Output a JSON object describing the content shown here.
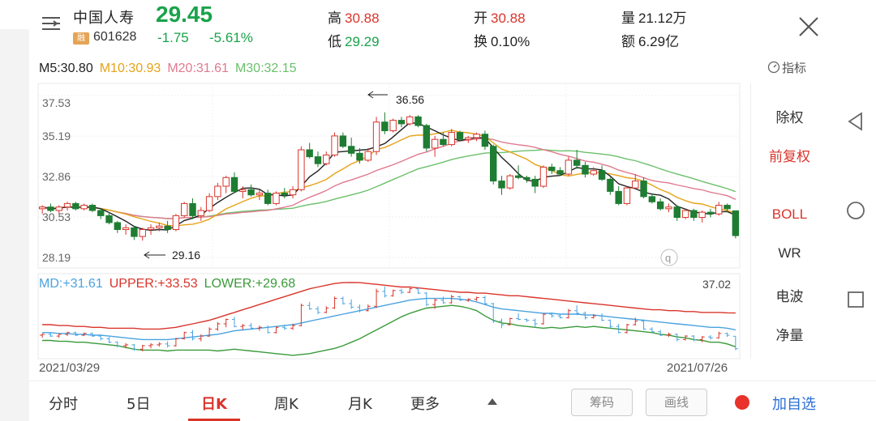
{
  "header": {
    "name": "中国人寿",
    "price": "29.45",
    "badge": "融",
    "code": "601628",
    "change": "-1.75",
    "change_pct": "-5.61%",
    "stats": {
      "high_label": "高",
      "high": "30.88",
      "low_label": "低",
      "low": "29.29",
      "open_label": "开",
      "open": "30.88",
      "turnover_label": "换",
      "turnover": "0.10%",
      "volume_label": "量",
      "volume": "21.12万",
      "amount_label": "额",
      "amount": "6.29亿"
    }
  },
  "ma": {
    "m5": "M5:30.80",
    "m10": "M10:30.93",
    "m20": "M20:31.61",
    "m30": "M30:32.15"
  },
  "indicator_label": "指标",
  "kline": {
    "y_ticks": [
      "37.53",
      "35.19",
      "32.86",
      "30.53",
      "28.19"
    ],
    "max_label": "36.56",
    "min_label": "29.16",
    "logo": "q"
  },
  "boll": {
    "md": "MD:+31.61",
    "upper": "UPPER:+33.53",
    "lower": "LOWER:+29.68",
    "max_label": "37.02"
  },
  "dates": {
    "start": "2021/03/29",
    "end": "2021/07/26"
  },
  "side_panel": [
    "除权",
    "前复权",
    "BOLL",
    "WR",
    "电波",
    "净量"
  ],
  "tabs": [
    "分时",
    "5日",
    "日K",
    "周K",
    "月K",
    "更多"
  ],
  "buttons": {
    "chip": "筹码",
    "draw": "画线",
    "add_watch": "加自选"
  },
  "colors": {
    "up": "#d9342b",
    "down": "#1e7d32",
    "m5": "#222222",
    "m10": "#e6a317",
    "m20": "#e07a8f",
    "m30": "#6cc06c",
    "md": "#4aa3e0",
    "upper": "#d9342b",
    "lower": "#3a9a3a"
  },
  "chart_data": {
    "type": "candlestick",
    "y_range": [
      28.19,
      37.53
    ],
    "candles": [
      [
        31.0,
        31.2,
        30.7,
        31.1
      ],
      [
        31.1,
        31.3,
        30.8,
        30.9
      ],
      [
        30.9,
        31.2,
        30.7,
        31.1
      ],
      [
        31.1,
        31.4,
        30.9,
        31.3
      ],
      [
        31.3,
        31.4,
        30.9,
        31.0
      ],
      [
        31.0,
        31.3,
        30.9,
        31.2
      ],
      [
        31.2,
        31.3,
        30.8,
        30.9
      ],
      [
        30.9,
        31.0,
        30.4,
        30.6
      ],
      [
        30.6,
        30.8,
        30.1,
        30.2
      ],
      [
        30.2,
        30.3,
        29.6,
        29.8
      ],
      [
        29.8,
        30.1,
        29.5,
        29.9
      ],
      [
        29.9,
        30.0,
        29.2,
        29.4
      ],
      [
        29.4,
        29.9,
        29.16,
        29.8
      ],
      [
        29.8,
        30.1,
        29.5,
        29.9
      ],
      [
        29.9,
        30.2,
        29.7,
        30.0
      ],
      [
        30.0,
        30.3,
        29.6,
        29.8
      ],
      [
        29.8,
        30.7,
        29.7,
        30.6
      ],
      [
        30.6,
        31.4,
        30.5,
        31.3
      ],
      [
        31.3,
        31.6,
        30.4,
        30.6
      ],
      [
        30.6,
        31.1,
        30.3,
        30.9
      ],
      [
        30.9,
        31.9,
        30.8,
        31.7
      ],
      [
        31.7,
        32.5,
        31.5,
        32.3
      ],
      [
        32.3,
        32.9,
        31.9,
        32.8
      ],
      [
        32.8,
        33.1,
        31.9,
        32.0
      ],
      [
        32.0,
        32.3,
        31.6,
        32.1
      ],
      [
        32.1,
        32.4,
        31.7,
        31.8
      ],
      [
        31.8,
        32.1,
        31.5,
        31.9
      ],
      [
        31.9,
        32.1,
        31.2,
        31.3
      ],
      [
        31.3,
        32.0,
        31.2,
        31.9
      ],
      [
        31.9,
        32.2,
        31.6,
        31.8
      ],
      [
        31.8,
        32.3,
        31.6,
        32.1
      ],
      [
        32.1,
        34.6,
        32.0,
        34.4
      ],
      [
        34.4,
        34.8,
        33.9,
        34.0
      ],
      [
        34.0,
        34.3,
        33.4,
        33.6
      ],
      [
        33.6,
        34.3,
        33.5,
        34.1
      ],
      [
        34.1,
        35.4,
        34.0,
        35.2
      ],
      [
        35.2,
        35.4,
        34.5,
        34.6
      ],
      [
        34.6,
        35.1,
        34.0,
        34.2
      ],
      [
        34.2,
        34.5,
        33.6,
        33.8
      ],
      [
        33.8,
        34.5,
        33.7,
        34.3
      ],
      [
        34.3,
        36.3,
        34.1,
        36.0
      ],
      [
        36.0,
        36.56,
        35.3,
        35.5
      ],
      [
        35.5,
        36.2,
        35.4,
        36.1
      ],
      [
        36.1,
        36.3,
        35.7,
        35.9
      ],
      [
        35.9,
        36.4,
        35.8,
        36.3
      ],
      [
        36.3,
        36.4,
        35.7,
        35.8
      ],
      [
        35.8,
        35.9,
        34.3,
        34.5
      ],
      [
        34.5,
        35.2,
        34.0,
        35.0
      ],
      [
        35.0,
        35.4,
        34.6,
        34.7
      ],
      [
        34.7,
        35.6,
        34.6,
        35.4
      ],
      [
        35.4,
        35.5,
        34.9,
        35.0
      ],
      [
        35.0,
        35.2,
        34.8,
        35.1
      ],
      [
        35.1,
        35.4,
        34.9,
        35.3
      ],
      [
        35.3,
        35.5,
        34.4,
        34.6
      ],
      [
        34.6,
        34.7,
        32.4,
        32.6
      ],
      [
        32.6,
        32.9,
        31.8,
        32.2
      ],
      [
        32.2,
        33.0,
        32.1,
        32.9
      ],
      [
        32.9,
        33.5,
        32.7,
        32.8
      ],
      [
        32.8,
        32.9,
        32.5,
        32.7
      ],
      [
        32.7,
        32.9,
        31.9,
        32.3
      ],
      [
        32.3,
        33.5,
        32.2,
        33.4
      ],
      [
        33.4,
        33.6,
        33.0,
        33.2
      ],
      [
        33.2,
        33.4,
        32.9,
        33.0
      ],
      [
        33.0,
        34.0,
        32.9,
        33.8
      ],
      [
        33.8,
        34.4,
        33.3,
        33.5
      ],
      [
        33.5,
        33.7,
        32.8,
        33.0
      ],
      [
        33.0,
        33.4,
        32.9,
        33.2
      ],
      [
        33.2,
        33.5,
        32.6,
        32.7
      ],
      [
        32.7,
        32.8,
        31.8,
        32.0
      ],
      [
        32.0,
        32.3,
        31.2,
        31.3
      ],
      [
        31.3,
        32.3,
        31.2,
        32.2
      ],
      [
        32.2,
        33.0,
        32.1,
        32.6
      ],
      [
        32.6,
        32.8,
        31.6,
        31.7
      ],
      [
        31.7,
        31.9,
        31.3,
        31.4
      ],
      [
        31.4,
        31.6,
        30.9,
        31.0
      ],
      [
        31.0,
        31.3,
        30.8,
        31.1
      ],
      [
        31.1,
        31.2,
        30.3,
        30.5
      ],
      [
        30.5,
        31.0,
        30.4,
        30.9
      ],
      [
        30.9,
        31.0,
        30.3,
        30.5
      ],
      [
        30.5,
        30.9,
        30.2,
        30.8
      ],
      [
        30.8,
        31.0,
        30.5,
        30.7
      ],
      [
        30.7,
        31.4,
        30.6,
        31.2
      ],
      [
        31.2,
        31.3,
        30.8,
        31.0
      ],
      [
        30.88,
        30.88,
        29.29,
        29.45
      ]
    ],
    "md": [
      31.3,
      31.3,
      31.2,
      31.2,
      31.1,
      31.1,
      31.0,
      31.0,
      30.9,
      30.8,
      30.7,
      30.6,
      30.5,
      30.5,
      30.5,
      30.5,
      30.6,
      30.7,
      30.8,
      30.9,
      31.0,
      31.1,
      31.3,
      31.5,
      31.6,
      31.7,
      31.8,
      31.9,
      32.0,
      32.1,
      32.2,
      32.4,
      32.6,
      32.8,
      33.0,
      33.2,
      33.4,
      33.6,
      33.8,
      34.0,
      34.2,
      34.4,
      34.6,
      34.8,
      35.0,
      35.1,
      35.2,
      35.2,
      35.2,
      35.2,
      35.1,
      35.0,
      34.8,
      34.5,
      34.2,
      34.0,
      33.9,
      33.8,
      33.7,
      33.6,
      33.5,
      33.5,
      33.4,
      33.4,
      33.4,
      33.3,
      33.3,
      33.2,
      33.1,
      33.0,
      32.9,
      32.8,
      32.7,
      32.6,
      32.5,
      32.4,
      32.3,
      32.2,
      32.1,
      32.0,
      31.9,
      31.9,
      31.8,
      31.61
    ],
    "upper": [
      32.2,
      32.2,
      32.1,
      32.1,
      32.0,
      32.0,
      31.9,
      31.9,
      31.8,
      31.8,
      31.8,
      31.8,
      31.7,
      31.7,
      31.7,
      31.8,
      31.9,
      32.1,
      32.3,
      32.5,
      32.7,
      33.0,
      33.3,
      33.6,
      33.9,
      34.2,
      34.5,
      34.8,
      35.1,
      35.4,
      35.7,
      36.0,
      36.3,
      36.5,
      36.7,
      36.9,
      37.0,
      37.02,
      37.0,
      36.9,
      36.8,
      36.7,
      36.6,
      36.5,
      36.5,
      36.4,
      36.3,
      36.2,
      36.1,
      36.0,
      35.9,
      35.9,
      35.8,
      35.8,
      35.7,
      35.6,
      35.5,
      35.5,
      35.4,
      35.3,
      35.2,
      35.1,
      35.0,
      34.9,
      34.8,
      34.7,
      34.6,
      34.5,
      34.4,
      34.3,
      34.2,
      34.1,
      34.0,
      33.9,
      33.9,
      33.8,
      33.8,
      33.7,
      33.7,
      33.6,
      33.6,
      33.6,
      33.55,
      33.53
    ],
    "lower": [
      30.4,
      30.4,
      30.3,
      30.3,
      30.2,
      30.2,
      30.1,
      30.0,
      29.9,
      29.8,
      29.6,
      29.4,
      29.3,
      29.3,
      29.3,
      29.2,
      29.3,
      29.3,
      29.3,
      29.3,
      29.3,
      29.2,
      29.3,
      29.4,
      29.3,
      29.2,
      29.1,
      29.0,
      28.9,
      28.8,
      28.7,
      28.8,
      28.9,
      29.1,
      29.3,
      29.5,
      29.8,
      30.2,
      30.6,
      31.1,
      31.6,
      32.1,
      32.6,
      33.1,
      33.5,
      33.8,
      34.1,
      34.2,
      34.3,
      34.4,
      34.3,
      34.1,
      33.8,
      33.2,
      32.7,
      32.4,
      32.3,
      32.1,
      32.0,
      31.9,
      31.8,
      31.9,
      31.8,
      31.9,
      32.0,
      31.9,
      32.0,
      31.9,
      31.8,
      31.7,
      31.6,
      31.5,
      31.4,
      31.3,
      31.1,
      31.0,
      30.8,
      30.7,
      30.5,
      30.4,
      30.2,
      30.2,
      30.0,
      29.68
    ]
  }
}
